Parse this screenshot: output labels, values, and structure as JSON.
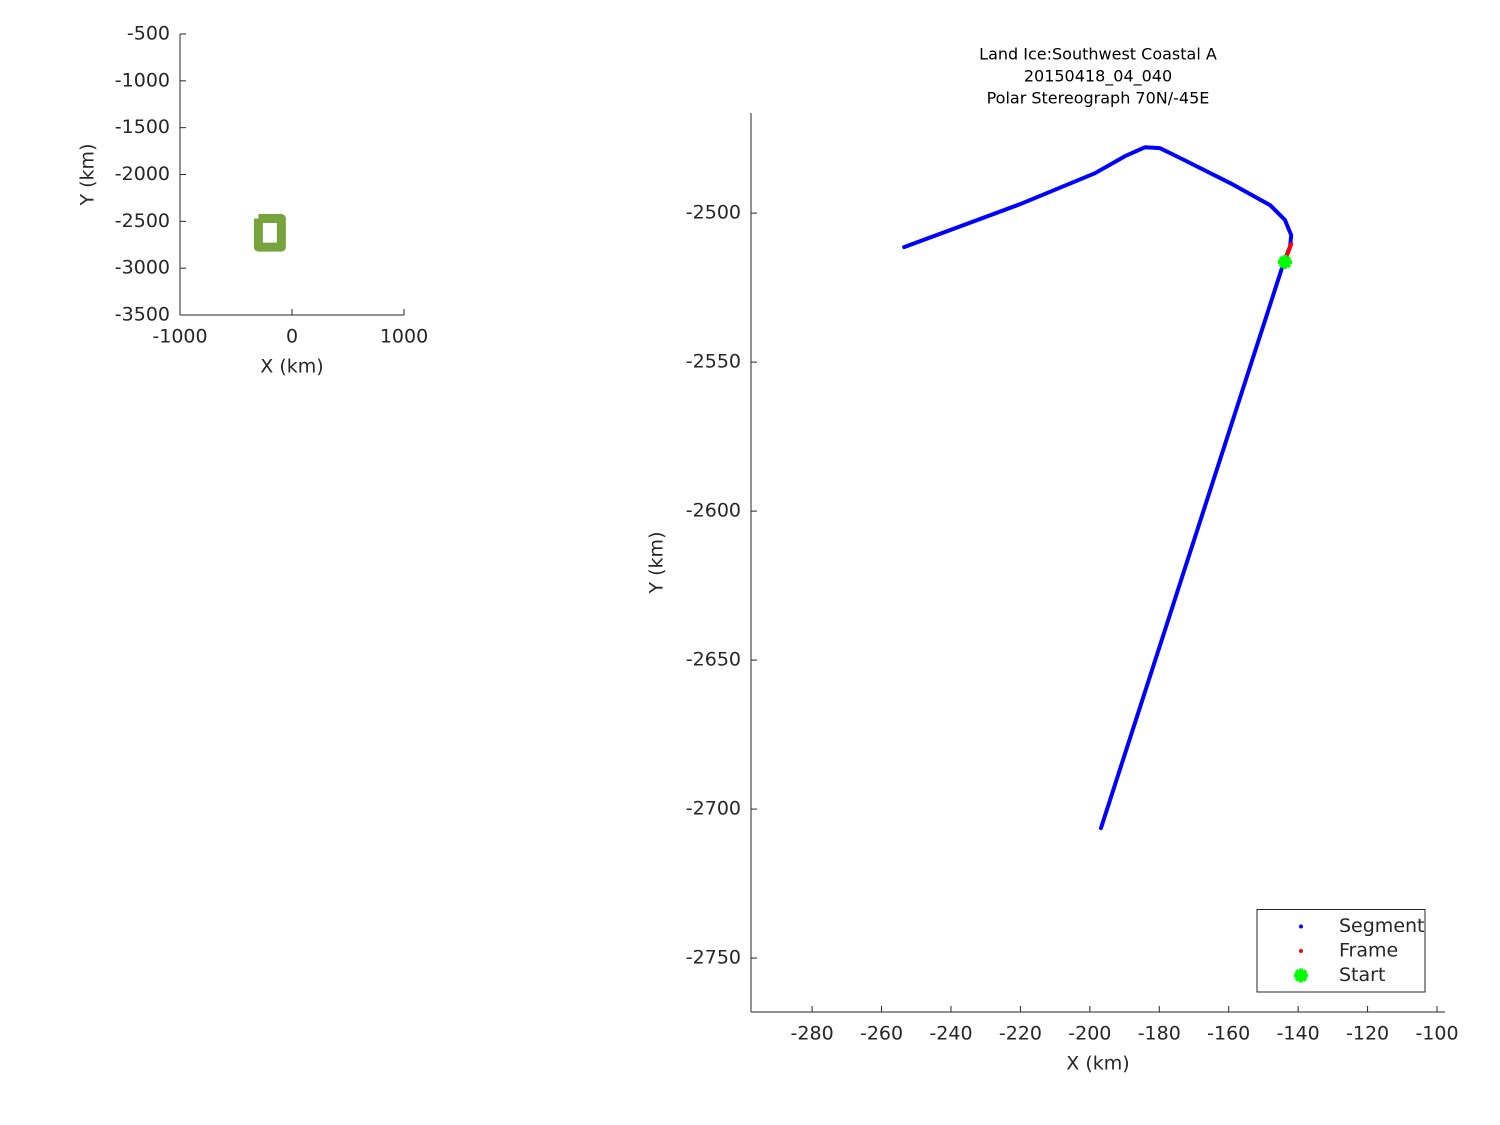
{
  "chart_data": [
    {
      "type": "fill",
      "xlabel": "X (km)",
      "ylabel": "Y (km)",
      "xlim": [
        -1000,
        1000
      ],
      "ylim": [
        -3500,
        -500
      ],
      "xticks": [
        -1000,
        0,
        1000
      ],
      "yticks": [
        -500,
        -1000,
        -1500,
        -2000,
        -2500,
        -3000,
        -3500
      ],
      "color": "#77a33c",
      "x": [
        -300,
        -95,
        -95,
        -300,
        -300
      ],
      "y": [
        -2470,
        -2470,
        -2775,
        -2775,
        -2470
      ]
    },
    {
      "type": "line",
      "title": [
        "Land Ice:Southwest Coastal A",
        "20150418_04_040",
        "Polar Stereograph 70N/-45E"
      ],
      "xlabel": "X (km)",
      "ylabel": "Y (km)",
      "xlim": [
        -297.6,
        -97.7
      ],
      "ylim": [
        -2768.1,
        -2466.4
      ],
      "xticks": [
        -280,
        -260,
        -240,
        -220,
        -200,
        -180,
        -160,
        -140,
        -120,
        -100
      ],
      "yticks": [
        -2500,
        -2550,
        -2600,
        -2650,
        -2700,
        -2750
      ],
      "legend": "southeast",
      "series": [
        {
          "name": "Segment",
          "color": "#0000ff",
          "marker": "dot",
          "x": [
            -253.5,
            -220.1,
            -198.5,
            -189.9,
            -184.1,
            -179.8,
            -174.0,
            -159.6,
            -148.1,
            -143.8,
            -142.0,
            -142.3,
            -144.1,
            -196.8
          ],
          "y": [
            -2511.4,
            -2497.0,
            -2486.6,
            -2480.9,
            -2477.9,
            -2478.2,
            -2481.5,
            -2489.9,
            -2497.3,
            -2502.3,
            -2507.4,
            -2511.1,
            -2516.4,
            -2706.4
          ]
        },
        {
          "name": "Frame",
          "color": "#ff0000",
          "marker": "dot",
          "x": [
            -142.0,
            -143.5
          ],
          "y": [
            -2510.4,
            -2515.1
          ]
        },
        {
          "name": "Start",
          "color": "#00ff00",
          "marker": "asterisk",
          "x": [
            -143.8
          ],
          "y": [
            -2516.4
          ]
        }
      ]
    }
  ]
}
